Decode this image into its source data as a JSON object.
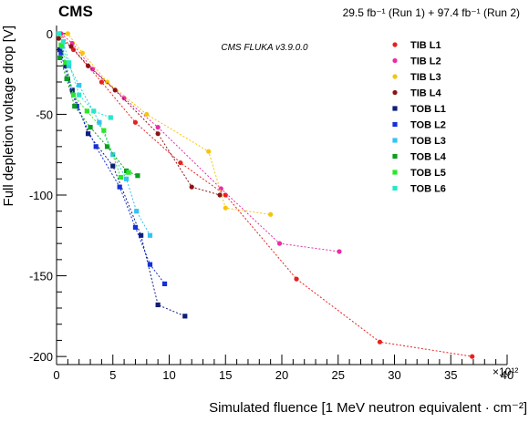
{
  "header": {
    "experiment": "CMS",
    "luminosity": "29.5 fb⁻¹ (Run 1) + 97.4 fb⁻¹ (Run 2)",
    "simulation": "CMS FLUKA v3.9.0.0"
  },
  "chart_data": {
    "type": "scatter",
    "xlabel": "Simulated fluence [1 MeV neutron equivalent · cm⁻²]",
    "ylabel": "Full depletion voltage drop [V]",
    "x_exponent_label": "×10¹²",
    "xlim": [
      0,
      40
    ],
    "ylim": [
      -205,
      5
    ],
    "x_unit_scale": "1e12",
    "xticks": [
      0,
      5,
      10,
      15,
      20,
      25,
      30,
      35,
      40
    ],
    "yticks": [
      0,
      -50,
      -100,
      -150,
      -200
    ],
    "grid": false,
    "legend_position": "top-right",
    "series": [
      {
        "name": "TIB L1",
        "color": "#e8201f",
        "marker": "circle",
        "points": [
          [
            0.3,
            0
          ],
          [
            1.5,
            -10
          ],
          [
            4.0,
            -30
          ],
          [
            7.0,
            -55
          ],
          [
            11.0,
            -80
          ],
          [
            15.0,
            -100
          ],
          [
            21.3,
            -152
          ],
          [
            28.7,
            -191
          ],
          [
            36.9,
            -200
          ]
        ]
      },
      {
        "name": "TIB L2",
        "color": "#e82da6",
        "marker": "circle",
        "points": [
          [
            0.4,
            0
          ],
          [
            1.4,
            -6
          ],
          [
            3.2,
            -22
          ],
          [
            6.0,
            -40
          ],
          [
            9.0,
            -58
          ],
          [
            14.6,
            -96
          ],
          [
            19.8,
            -130
          ],
          [
            25.1,
            -135
          ]
        ]
      },
      {
        "name": "TIB L3",
        "color": "#f5c40c",
        "marker": "circle",
        "points": [
          [
            0.3,
            -2
          ],
          [
            1.0,
            0
          ],
          [
            2.3,
            -12
          ],
          [
            4.5,
            -30
          ],
          [
            8.0,
            -50
          ],
          [
            13.5,
            -73
          ],
          [
            15.0,
            -108
          ],
          [
            19.0,
            -112
          ]
        ]
      },
      {
        "name": "TIB L4",
        "color": "#8a1414",
        "marker": "circle",
        "points": [
          [
            0.2,
            -3
          ],
          [
            1.3,
            -8
          ],
          [
            2.8,
            -20
          ],
          [
            5.2,
            -35
          ],
          [
            9.0,
            -62
          ],
          [
            12.0,
            -95
          ],
          [
            14.5,
            -100
          ]
        ]
      },
      {
        "name": "TOB L1",
        "color": "#0f1e78",
        "marker": "square",
        "points": [
          [
            0.3,
            -10
          ],
          [
            0.8,
            -20
          ],
          [
            1.4,
            -35
          ],
          [
            2.8,
            -62
          ],
          [
            5.0,
            -82
          ],
          [
            7.5,
            -125
          ],
          [
            9.0,
            -168
          ],
          [
            11.4,
            -175
          ]
        ]
      },
      {
        "name": "TOB L2",
        "color": "#1430d8",
        "marker": "square",
        "points": [
          [
            0.4,
            -12
          ],
          [
            1.0,
            -28
          ],
          [
            1.8,
            -45
          ],
          [
            3.5,
            -70
          ],
          [
            5.6,
            -95
          ],
          [
            7.0,
            -120
          ],
          [
            8.3,
            -143
          ],
          [
            9.6,
            -155
          ]
        ]
      },
      {
        "name": "TOB L3",
        "color": "#35c3f2",
        "marker": "square",
        "points": [
          [
            0.5,
            -8
          ],
          [
            1.1,
            -20
          ],
          [
            2.0,
            -32
          ],
          [
            3.8,
            -55
          ],
          [
            5.0,
            -75
          ],
          [
            6.2,
            -90
          ],
          [
            7.1,
            -110
          ],
          [
            8.3,
            -125
          ]
        ]
      },
      {
        "name": "TOB L4",
        "color": "#0a9e1e",
        "marker": "square",
        "points": [
          [
            0.3,
            -15
          ],
          [
            0.9,
            -28
          ],
          [
            1.6,
            -45
          ],
          [
            3.0,
            -58
          ],
          [
            4.5,
            -70
          ],
          [
            6.2,
            -85
          ],
          [
            7.2,
            -88
          ]
        ]
      },
      {
        "name": "TOB L5",
        "color": "#28e828",
        "marker": "square",
        "points": [
          [
            0.4,
            -7
          ],
          [
            0.8,
            -18
          ],
          [
            1.5,
            -38
          ],
          [
            2.7,
            -48
          ],
          [
            4.2,
            -60
          ],
          [
            5.7,
            -89
          ],
          [
            6.4,
            -86
          ]
        ]
      },
      {
        "name": "TOB L6",
        "color": "#25e8c8",
        "marker": "square",
        "points": [
          [
            0.2,
            0
          ],
          [
            0.6,
            -5
          ],
          [
            1.1,
            -18
          ],
          [
            2.0,
            -38
          ],
          [
            3.3,
            -48
          ],
          [
            4.8,
            -52
          ]
        ]
      }
    ]
  }
}
